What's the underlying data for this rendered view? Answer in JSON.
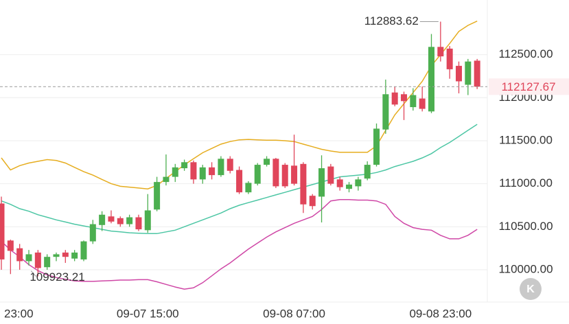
{
  "chart_data": {
    "type": "candlestick",
    "categories": [
      "23:00",
      null,
      null,
      null,
      null,
      null,
      null,
      null,
      null,
      null,
      null,
      null,
      null,
      null,
      null,
      null,
      "09-07 15:00",
      null,
      null,
      null,
      null,
      null,
      null,
      null,
      null,
      null,
      null,
      null,
      null,
      null,
      null,
      null,
      "09-08 07:00",
      null,
      null,
      null,
      null,
      null,
      null,
      null,
      null,
      null,
      null,
      null,
      null,
      null,
      null,
      null,
      "09-08 23:00",
      null,
      null,
      null,
      null
    ],
    "open": [
      110770,
      110340,
      110250,
      110100,
      110200,
      110030,
      110150,
      110200,
      110130,
      110120,
      110330,
      110520,
      110620,
      110600,
      110530,
      110610,
      110460,
      110700,
      111020,
      111080,
      111180,
      111250,
      111050,
      111190,
      111100,
      111290,
      111160,
      110900,
      111000,
      111220,
      111290,
      111220,
      111210,
      111230,
      110860,
      110850,
      111200,
      111050,
      110940,
      110970,
      111060,
      111220,
      111630,
      112060,
      112040,
      111890,
      111990,
      111840,
      112590,
      112570,
      112370,
      112150,
      112430
    ],
    "high": [
      110850,
      110350,
      110300,
      110230,
      110230,
      110180,
      110200,
      110230,
      110230,
      110340,
      110580,
      110680,
      110690,
      110620,
      110640,
      110640,
      110880,
      111080,
      111340,
      111230,
      111280,
      111270,
      111220,
      111250,
      111320,
      111320,
      111200,
      111030,
      111240,
      111320,
      111300,
      111240,
      111570,
      111250,
      110880,
      111330,
      111230,
      111080,
      111020,
      111080,
      111260,
      111700,
      112210,
      112130,
      112070,
      112110,
      112130,
      112740,
      112883.62,
      112600,
      112420,
      112450,
      112450
    ],
    "low": [
      110000,
      109950,
      110000,
      110050,
      109923.21,
      110000,
      110100,
      110080,
      110100,
      110100,
      110300,
      110450,
      110540,
      110500,
      110500,
      110450,
      110430,
      110680,
      110980,
      111020,
      111150,
      111000,
      111000,
      111050,
      111080,
      111120,
      110880,
      110880,
      110980,
      111200,
      110950,
      110950,
      110980,
      110660,
      110700,
      110550,
      110980,
      110920,
      110900,
      110920,
      111040,
      111200,
      111580,
      111900,
      111740,
      111850,
      111840,
      111820,
      112420,
      112220,
      112050,
      112030,
      112100
    ],
    "close": [
      110120,
      110220,
      110100,
      110180,
      110020,
      110150,
      110180,
      110150,
      110200,
      110330,
      110530,
      110640,
      110560,
      110530,
      110610,
      110470,
      110690,
      111020,
      111080,
      111190,
      111250,
      111050,
      111190,
      111100,
      111290,
      111150,
      110900,
      111010,
      111220,
      111290,
      110970,
      110970,
      111000,
      110760,
      110740,
      111180,
      111000,
      110960,
      110990,
      111050,
      111220,
      111640,
      112040,
      111920,
      111960,
      112030,
      111870,
      112590,
      112480,
      112330,
      112190,
      112420,
      112127.67
    ],
    "up_color": "#4caf50",
    "down_color": "#e0455a",
    "lines": [
      {
        "color": "#e6ad1f",
        "values": [
          111300,
          111160,
          111210,
          111240,
          111260,
          111280,
          111270,
          111240,
          111190,
          111140,
          111100,
          111050,
          111000,
          110970,
          110960,
          110950,
          110940,
          110980,
          111060,
          111140,
          111220,
          111290,
          111360,
          111410,
          111460,
          111490,
          111510,
          111515,
          111510,
          111505,
          111505,
          111500,
          111490,
          111460,
          111430,
          111400,
          111380,
          111365,
          111365,
          111365,
          111365,
          111440,
          111620,
          111800,
          111930,
          112060,
          112190,
          112370,
          112500,
          112630,
          112770,
          112840,
          112890
        ]
      },
      {
        "color": "#4cc6a4",
        "values": [
          110800,
          110760,
          110710,
          110680,
          110640,
          110610,
          110580,
          110555,
          110530,
          110510,
          110490,
          110470,
          110450,
          110440,
          110430,
          110425,
          110420,
          110420,
          110440,
          110460,
          110500,
          110540,
          110580,
          110620,
          110660,
          110710,
          110750,
          110780,
          110810,
          110840,
          110870,
          110900,
          110930,
          110960,
          110990,
          111020,
          111050,
          111080,
          111090,
          111100,
          111110,
          111130,
          111160,
          111200,
          111230,
          111260,
          111300,
          111350,
          111420,
          111480,
          111550,
          111620,
          111690
        ]
      },
      {
        "color": "#cf47a6",
        "values": [
          110330,
          110230,
          110150,
          110060,
          109990,
          109940,
          109910,
          109890,
          109870,
          109865,
          109865,
          109870,
          109875,
          109880,
          109880,
          109885,
          109885,
          109860,
          109830,
          109800,
          109775,
          109790,
          109850,
          109930,
          110010,
          110080,
          110160,
          110240,
          110310,
          110380,
          110440,
          110490,
          110540,
          110580,
          110620,
          110700,
          110800,
          110815,
          110815,
          110810,
          110810,
          110800,
          110760,
          110620,
          110540,
          110490,
          110470,
          110460,
          110400,
          110360,
          110360,
          110400,
          110470
        ]
      }
    ],
    "ylim": [
      109625,
      113135
    ],
    "yticks": [
      {
        "value": 110000,
        "label": "110000.00"
      },
      {
        "value": 110500,
        "label": "110500.00"
      },
      {
        "value": 111000,
        "label": "111000.00"
      },
      {
        "value": 111500,
        "label": "111500.00"
      },
      {
        "value": 112000,
        "label": "112000.00"
      },
      {
        "value": 112500,
        "label": "112500.00"
      }
    ],
    "grid": true,
    "button": "K"
  }
}
